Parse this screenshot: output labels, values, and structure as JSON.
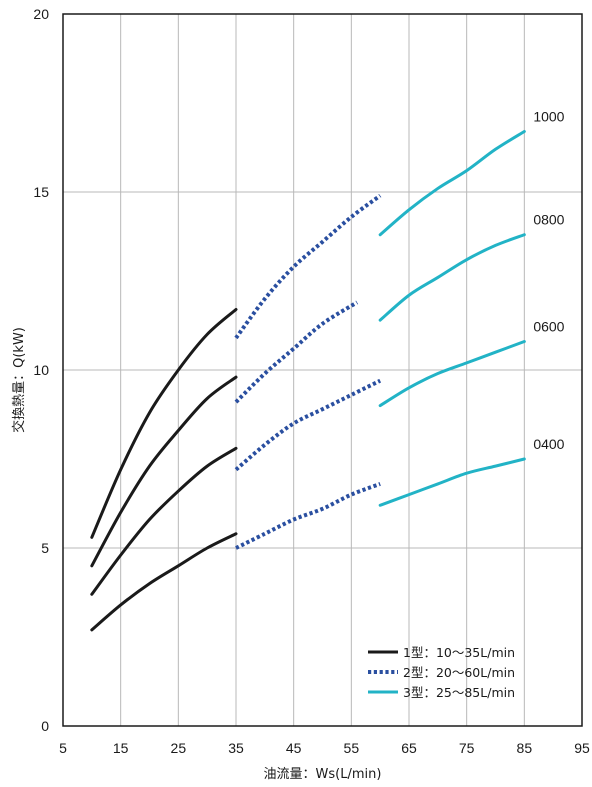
{
  "chart_data": {
    "type": "line",
    "xlabel": "油流量：Ws(L/min)",
    "ylabel": "交換熱量：Q(kW)",
    "xlim": [
      5,
      95
    ],
    "ylim": [
      0,
      20
    ],
    "xticks": [
      5,
      15,
      25,
      35,
      45,
      55,
      65,
      75,
      85,
      95
    ],
    "yticks": [
      0,
      5,
      10,
      15,
      20
    ],
    "grid": true,
    "legend_position": "bottom-right",
    "legend": [
      {
        "label": "1型：10～35L/min",
        "style": "solid",
        "color": "#1a1a1a"
      },
      {
        "label": "2型：20～60L/min",
        "style": "dotted",
        "color": "#2a4fa0"
      },
      {
        "label": "3型：25～85L/min",
        "style": "solid",
        "color": "#22b3c6"
      }
    ],
    "model_types": [
      {
        "name": "1型",
        "style": "solid",
        "color": "#1a1a1a"
      },
      {
        "name": "2型",
        "style": "dotted",
        "color": "#2a4fa0"
      },
      {
        "name": "3型",
        "style": "solid",
        "color": "#22b3c6"
      }
    ],
    "series": [
      {
        "name": "1000",
        "segments": [
          {
            "type": "1型",
            "points": [
              [
                10,
                5.3
              ],
              [
                15,
                7.2
              ],
              [
                20,
                8.8
              ],
              [
                25,
                10.0
              ],
              [
                30,
                11.0
              ],
              [
                35,
                11.7
              ]
            ]
          },
          {
            "type": "2型",
            "points": [
              [
                35,
                10.9
              ],
              [
                40,
                12.0
              ],
              [
                45,
                12.9
              ],
              [
                50,
                13.6
              ],
              [
                55,
                14.3
              ],
              [
                60,
                14.9
              ]
            ]
          },
          {
            "type": "3型",
            "points": [
              [
                60,
                13.8
              ],
              [
                65,
                14.5
              ],
              [
                70,
                15.1
              ],
              [
                75,
                15.6
              ],
              [
                80,
                16.2
              ],
              [
                85,
                16.7
              ]
            ]
          }
        ]
      },
      {
        "name": "0800",
        "segments": [
          {
            "type": "1型",
            "points": [
              [
                10,
                4.5
              ],
              [
                15,
                6.0
              ],
              [
                20,
                7.3
              ],
              [
                25,
                8.3
              ],
              [
                30,
                9.2
              ],
              [
                35,
                9.8
              ]
            ]
          },
          {
            "type": "2型",
            "points": [
              [
                35,
                9.1
              ],
              [
                40,
                9.9
              ],
              [
                45,
                10.6
              ],
              [
                50,
                11.3
              ],
              [
                56,
                11.9
              ]
            ]
          },
          {
            "type": "3型",
            "points": [
              [
                60,
                11.4
              ],
              [
                65,
                12.1
              ],
              [
                70,
                12.6
              ],
              [
                75,
                13.1
              ],
              [
                80,
                13.5
              ],
              [
                85,
                13.8
              ]
            ]
          }
        ]
      },
      {
        "name": "0600",
        "segments": [
          {
            "type": "1型",
            "points": [
              [
                10,
                3.7
              ],
              [
                15,
                4.8
              ],
              [
                20,
                5.8
              ],
              [
                25,
                6.6
              ],
              [
                30,
                7.3
              ],
              [
                35,
                7.8
              ]
            ]
          },
          {
            "type": "2型",
            "points": [
              [
                35,
                7.2
              ],
              [
                40,
                7.9
              ],
              [
                45,
                8.5
              ],
              [
                50,
                8.9
              ],
              [
                55,
                9.3
              ],
              [
                60,
                9.7
              ]
            ]
          },
          {
            "type": "3型",
            "points": [
              [
                60,
                9.0
              ],
              [
                65,
                9.5
              ],
              [
                70,
                9.9
              ],
              [
                75,
                10.2
              ],
              [
                80,
                10.5
              ],
              [
                85,
                10.8
              ]
            ]
          }
        ]
      },
      {
        "name": "0400",
        "segments": [
          {
            "type": "1型",
            "points": [
              [
                10,
                2.7
              ],
              [
                15,
                3.4
              ],
              [
                20,
                4.0
              ],
              [
                25,
                4.5
              ],
              [
                30,
                5.0
              ],
              [
                35,
                5.4
              ]
            ]
          },
          {
            "type": "2型",
            "points": [
              [
                35,
                5.0
              ],
              [
                40,
                5.4
              ],
              [
                45,
                5.8
              ],
              [
                50,
                6.1
              ],
              [
                55,
                6.5
              ],
              [
                60,
                6.8
              ]
            ]
          },
          {
            "type": "3型",
            "points": [
              [
                60,
                6.2
              ],
              [
                65,
                6.5
              ],
              [
                70,
                6.8
              ],
              [
                75,
                7.1
              ],
              [
                80,
                7.3
              ],
              [
                85,
                7.5
              ]
            ]
          }
        ]
      }
    ]
  }
}
